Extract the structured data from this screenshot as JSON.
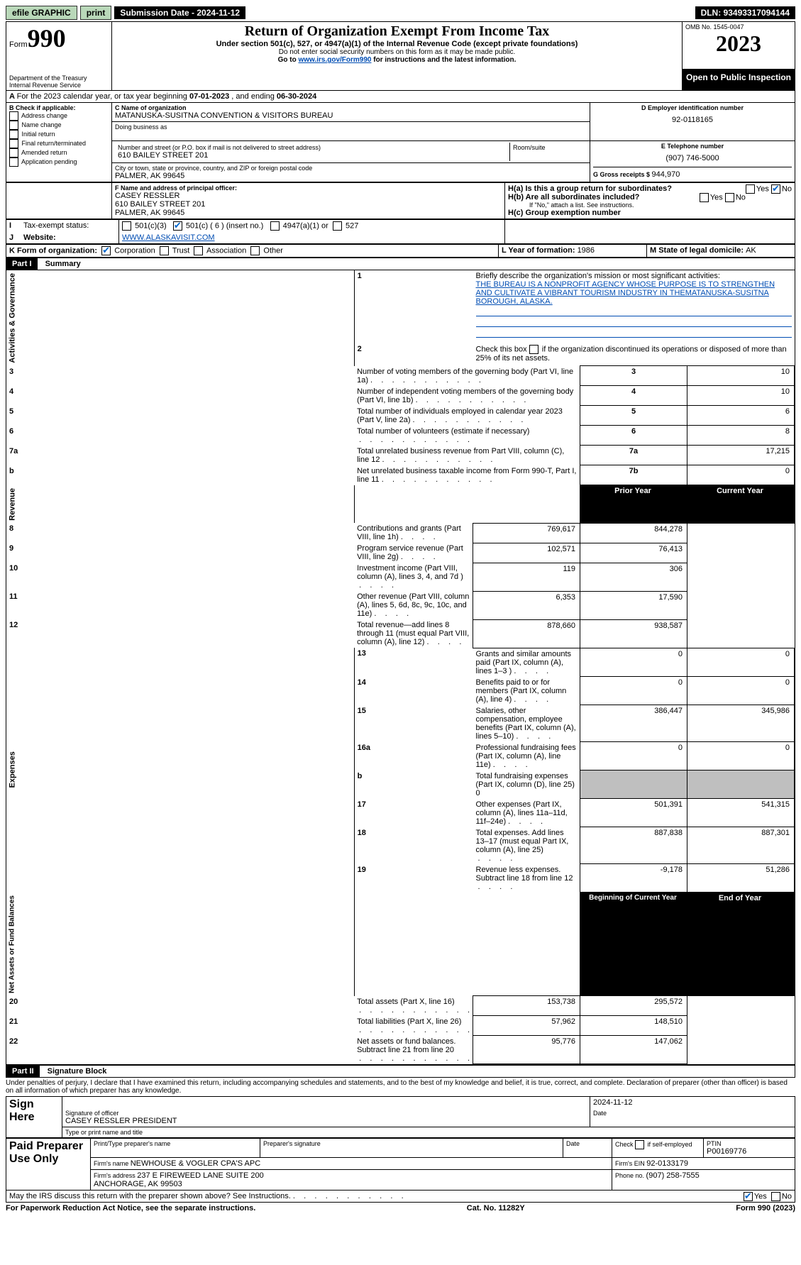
{
  "topbar": {
    "efile": "efile GRAPHIC",
    "print": "print",
    "submission": "Submission Date - 2024-11-12",
    "dln": "DLN: 93493317094144"
  },
  "header": {
    "form": "Form",
    "num": "990",
    "dept": "Department of the Treasury\nInternal Revenue Service",
    "title": "Return of Organization Exempt From Income Tax",
    "subtitle": "Under section 501(c), 527, or 4947(a)(1) of the Internal Revenue Code (except private foundations)",
    "ssn": "Do not enter social security numbers on this form as it may be made public.",
    "goto": "Go to ",
    "goto_link": "www.irs.gov/Form990",
    "goto_end": " for instructions and the latest information.",
    "omb": "OMB No. 1545-0047",
    "year": "2023",
    "open": "Open to Public Inspection"
  },
  "A": {
    "text": "For the 2023 calendar year, or tax year beginning ",
    "begin": "07-01-2023",
    "mid": "   , and ending ",
    "end": "06-30-2024"
  },
  "B": {
    "label": "B Check if applicable:",
    "items": [
      "Address change",
      "Name change",
      "Initial return",
      "Final return/terminated",
      "Amended return",
      "Application pending"
    ]
  },
  "C": {
    "name_label": "C Name of organization",
    "name": "MATANUSKA-SUSITNA CONVENTION & VISITORS BUREAU",
    "dba_label": "Doing business as",
    "street_label": "Number and street (or P.O. box if mail is not delivered to street address)",
    "street": "610 BAILEY STREET 201",
    "room_label": "Room/suite",
    "city_label": "City or town, state or province, country, and ZIP or foreign postal code",
    "city": "PALMER, AK  99645"
  },
  "D": {
    "label": "D Employer identification number",
    "value": "92-0118165"
  },
  "E": {
    "label": "E Telephone number",
    "value": "(907) 746-5000"
  },
  "G": {
    "label": "G Gross receipts $ ",
    "value": "944,970"
  },
  "F": {
    "label": "F Name and address of principal officer:",
    "name": "CASEY RESSLER",
    "street": "610 BAILEY STREET 201",
    "city": "PALMER, AK  99645"
  },
  "H": {
    "a": "H(a)  Is this a group return for subordinates?",
    "b": "H(b)  Are all subordinates included?",
    "b_note": "If \"No,\" attach a list. See instructions.",
    "c": "H(c)  Group exemption number "
  },
  "I": {
    "label": "Tax-exempt status:",
    "c3": "501(c)(3)",
    "c": "501(c) ( 6 ) (insert no.)",
    "a1": "4947(a)(1) or",
    "527": "527"
  },
  "J": {
    "label": "Website: ",
    "value": "WWW.ALASKAVISIT.COM"
  },
  "K": {
    "label": "K Form of organization:",
    "corp": "Corporation",
    "trust": "Trust",
    "assoc": "Association",
    "other": "Other"
  },
  "L": {
    "label": "L Year of formation: ",
    "value": "1986"
  },
  "M": {
    "label": "M State of legal domicile: ",
    "value": "AK"
  },
  "part1": {
    "header": "Part I",
    "title": "Summary",
    "sections": {
      "gov": "Activities & Governance",
      "rev": "Revenue",
      "exp": "Expenses",
      "net": "Net Assets or Fund Balances"
    },
    "l1_label": "Briefly describe the organization's mission or most significant activities:",
    "l1_text": "THE BUREAU IS A NONPROFIT AGENCY WHOSE PURPOSE IS TO STRENGTHEN AND CULTIVATE A VIBRANT TOURISM INDUSTRY IN THEMATANUSKA-SUSITNA BOROUGH, ALASKA.",
    "l2": "Check this box        if the organization discontinued its operations or disposed of more than 25% of its net assets.",
    "rows_gov": [
      {
        "n": "3",
        "label": "Number of voting members of the governing body (Part VI, line 1a)",
        "k": "3",
        "v": "10"
      },
      {
        "n": "4",
        "label": "Number of independent voting members of the governing body (Part VI, line 1b)",
        "k": "4",
        "v": "10"
      },
      {
        "n": "5",
        "label": "Total number of individuals employed in calendar year 2023 (Part V, line 2a)",
        "k": "5",
        "v": "6"
      },
      {
        "n": "6",
        "label": "Total number of volunteers (estimate if necessary)",
        "k": "6",
        "v": "8"
      },
      {
        "n": "7a",
        "label": "Total unrelated business revenue from Part VIII, column (C), line 12",
        "k": "7a",
        "v": "17,215"
      },
      {
        "n": "b",
        "label": "Net unrelated business taxable income from Form 990-T, Part I, line 11",
        "k": "7b",
        "v": "0"
      }
    ],
    "col_prior": "Prior Year",
    "col_current": "Current Year",
    "rows_rev": [
      {
        "n": "8",
        "label": "Contributions and grants (Part VIII, line 1h)",
        "p": "769,617",
        "c": "844,278"
      },
      {
        "n": "9",
        "label": "Program service revenue (Part VIII, line 2g)",
        "p": "102,571",
        "c": "76,413"
      },
      {
        "n": "10",
        "label": "Investment income (Part VIII, column (A), lines 3, 4, and 7d )",
        "p": "119",
        "c": "306"
      },
      {
        "n": "11",
        "label": "Other revenue (Part VIII, column (A), lines 5, 6d, 8c, 9c, 10c, and 11e)",
        "p": "6,353",
        "c": "17,590"
      },
      {
        "n": "12",
        "label": "Total revenue—add lines 8 through 11 (must equal Part VIII, column (A), line 12)",
        "p": "878,660",
        "c": "938,587"
      }
    ],
    "rows_exp": [
      {
        "n": "13",
        "label": "Grants and similar amounts paid (Part IX, column (A), lines 1–3 )",
        "p": "0",
        "c": "0"
      },
      {
        "n": "14",
        "label": "Benefits paid to or for members (Part IX, column (A), line 4)",
        "p": "0",
        "c": "0"
      },
      {
        "n": "15",
        "label": "Salaries, other compensation, employee benefits (Part IX, column (A), lines 5–10)",
        "p": "386,447",
        "c": "345,986"
      },
      {
        "n": "16a",
        "label": "Professional fundraising fees (Part IX, column (A), line 11e)",
        "p": "0",
        "c": "0"
      },
      {
        "n": "b",
        "label": "Total fundraising expenses (Part IX, column (D), line 25) 0",
        "p": "",
        "c": "",
        "grey": true
      },
      {
        "n": "17",
        "label": "Other expenses (Part IX, column (A), lines 11a–11d, 11f–24e)",
        "p": "501,391",
        "c": "541,315"
      },
      {
        "n": "18",
        "label": "Total expenses. Add lines 13–17 (must equal Part IX, column (A), line 25)",
        "p": "887,838",
        "c": "887,301"
      },
      {
        "n": "19",
        "label": "Revenue less expenses. Subtract line 18 from line 12",
        "p": "-9,178",
        "c": "51,286"
      }
    ],
    "col_begin": "Beginning of Current Year",
    "col_end": "End of Year",
    "rows_net": [
      {
        "n": "20",
        "label": "Total assets (Part X, line 16)",
        "p": "153,738",
        "c": "295,572"
      },
      {
        "n": "21",
        "label": "Total liabilities (Part X, line 26)",
        "p": "57,962",
        "c": "148,510"
      },
      {
        "n": "22",
        "label": "Net assets or fund balances. Subtract line 21 from line 20",
        "p": "95,776",
        "c": "147,062"
      }
    ]
  },
  "part2": {
    "header": "Part II",
    "title": "Signature Block",
    "perjury": "Under penalties of perjury, I declare that I have examined this return, including accompanying schedules and statements, and to the best of my knowledge and belief, it is true, correct, and complete. Declaration of preparer (other than officer) is based on all information of which preparer has any knowledge.",
    "sign_here": "Sign Here",
    "sig_officer": "Signature of officer",
    "officer": "CASEY RESSLER  PRESIDENT",
    "sig_date": "2024-11-12",
    "type_name": "Type or print name and title",
    "date_label": "Date",
    "paid": "Paid Preparer Use Only",
    "prep_name_label": "Print/Type preparer's name",
    "prep_sig_label": "Preparer's signature",
    "check_self": "Check         if self-employed",
    "ptin_label": "PTIN",
    "ptin": "P00169776",
    "firm_name_label": "Firm's name   ",
    "firm_name": "NEWHOUSE & VOGLER CPA'S APC",
    "firm_ein_label": "Firm's EIN  ",
    "firm_ein": "92-0133179",
    "firm_addr_label": "Firm's address ",
    "firm_addr": "237 E FIREWEED LANE SUITE 200\nANCHORAGE, AK  99503",
    "phone_label": "Phone no. ",
    "phone": "(907) 258-7555",
    "discuss": "May the IRS discuss this return with the preparer shown above? See Instructions.",
    "yes": "Yes",
    "no": "No"
  },
  "footer": {
    "pra": "For Paperwork Reduction Act Notice, see the separate instructions.",
    "cat": "Cat. No. 11282Y",
    "form": "Form 990 (2023)"
  },
  "colors": {
    "link": "#004db3",
    "green": "#b9d8b9"
  }
}
